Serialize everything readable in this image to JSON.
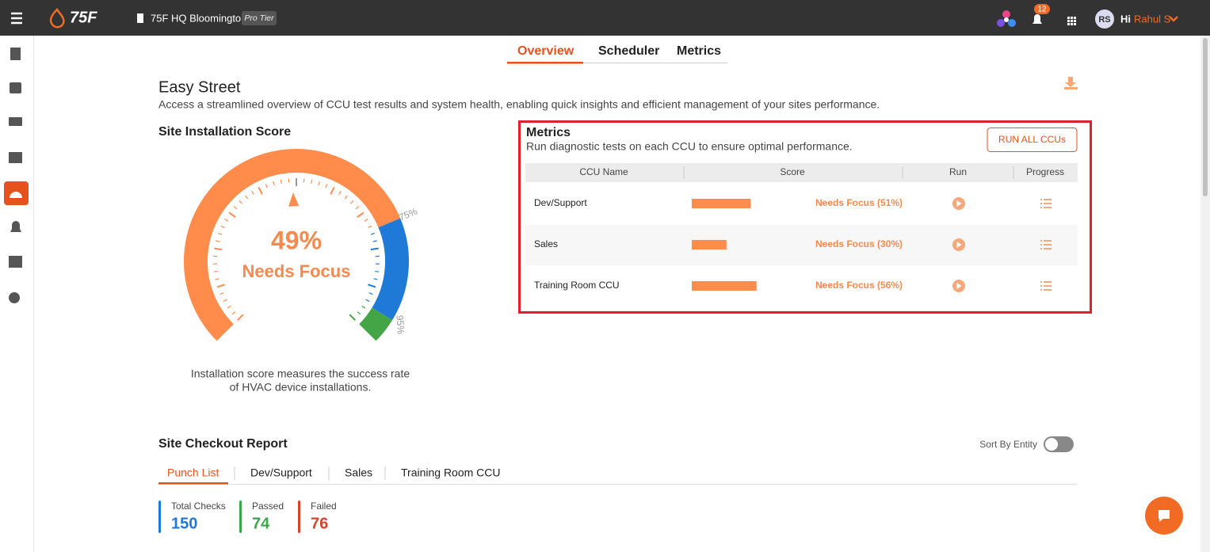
{
  "header": {
    "brand": "75F",
    "site": "75F HQ Bloomington",
    "tier": "Pro Tier",
    "notifications": "12",
    "avatar": "RS",
    "greeting": "Hi",
    "user": "Rahul S"
  },
  "tabs": [
    "Overview",
    "Scheduler",
    "Metrics"
  ],
  "page": {
    "title": "Easy Street",
    "description": "Access a streamlined overview of CCU test results and system health, enabling quick insights and efficient management of your sites performance."
  },
  "score": {
    "title": "Site Installation Score",
    "value": 49,
    "value_label": "49%",
    "status": "Needs Focus",
    "range": [
      0,
      100
    ],
    "thresholds": [
      {
        "value": 75,
        "label": "75%"
      },
      {
        "value": 95,
        "label": "95%"
      }
    ],
    "caption": [
      "Installation score measures the success rate",
      "of HVAC device installations."
    ]
  },
  "metrics": {
    "title": "Metrics",
    "subtitle": "Run diagnostic tests on each CCU to ensure optimal performance.",
    "button": "RUN ALL CCUs",
    "columns": [
      "CCU Name",
      "Score",
      "Run",
      "Progress"
    ],
    "rows": [
      {
        "name": "Dev/Support",
        "score": 51,
        "status": "Needs Focus (51%)"
      },
      {
        "name": "Sales",
        "score": 30,
        "status": "Needs Focus (30%)"
      },
      {
        "name": "Training Room CCU",
        "score": 56,
        "status": "Needs Focus (56%)"
      }
    ]
  },
  "checkout": {
    "title": "Site Checkout Report",
    "sort_label": "Sort By Entity",
    "tabs": [
      "Punch List",
      "Dev/Support",
      "Sales",
      "Training Room CCU"
    ],
    "stats": [
      {
        "label": "Total Checks",
        "value": 150
      },
      {
        "label": "Passed",
        "value": 74
      },
      {
        "label": "Failed",
        "value": 76
      }
    ]
  }
}
